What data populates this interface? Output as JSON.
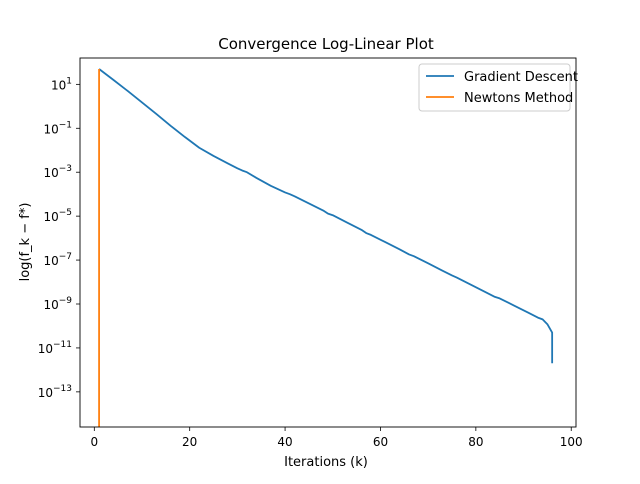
{
  "chart_data": {
    "type": "line",
    "title": "Convergence Log-Linear Plot",
    "xlabel": "Iterations (k)",
    "ylabel": "log(f_k − f*)",
    "y_scale": "log",
    "xlim": [
      -3,
      101
    ],
    "ylim_exp": [
      -14.6,
      2.2
    ],
    "x_ticks": [
      0,
      20,
      40,
      60,
      80,
      100
    ],
    "y_tick_exponents": [
      1,
      -1,
      -3,
      -5,
      -7,
      -9,
      -11,
      -13
    ],
    "grid": false,
    "legend_position": "top-right",
    "series": [
      {
        "name": "Gradient Descent",
        "color": "#1f77b4",
        "x": [
          1,
          4,
          7,
          10,
          13,
          16,
          19,
          22,
          25,
          28,
          30,
          31,
          32,
          34,
          37,
          40,
          41,
          42,
          45,
          48,
          49,
          50,
          53,
          56,
          57,
          58,
          61,
          64,
          66,
          67,
          70,
          73,
          75,
          76,
          79,
          82,
          84,
          85,
          88,
          91,
          93,
          94,
          95,
          96,
          96
        ],
        "y": [
          50,
          16,
          5,
          1.5,
          0.45,
          0.13,
          0.04,
          0.013,
          0.0055,
          0.0025,
          0.0015,
          0.0012,
          0.001,
          0.00055,
          0.00024,
          0.00012,
          0.0001,
          8e-05,
          3.8e-05,
          1.8e-05,
          1.3e-05,
          1.1e-05,
          5.1e-06,
          2.4e-06,
          1.7e-06,
          1.4e-06,
          6.6e-07,
          3.1e-07,
          1.8e-07,
          1.5e-07,
          7.1e-08,
          3.3e-08,
          2e-08,
          1.6e-08,
          7.5e-09,
          3.5e-09,
          2.1e-09,
          1.8e-09,
          8.5e-10,
          4e-10,
          2.4e-10,
          2e-10,
          1.2e-10,
          5e-11,
          2e-12
        ]
      },
      {
        "name": "Newtons Method",
        "color": "#ff7f0e",
        "x": [
          1,
          1,
          1
        ],
        "y": [
          50,
          1e-08,
          1e-15
        ]
      }
    ]
  }
}
